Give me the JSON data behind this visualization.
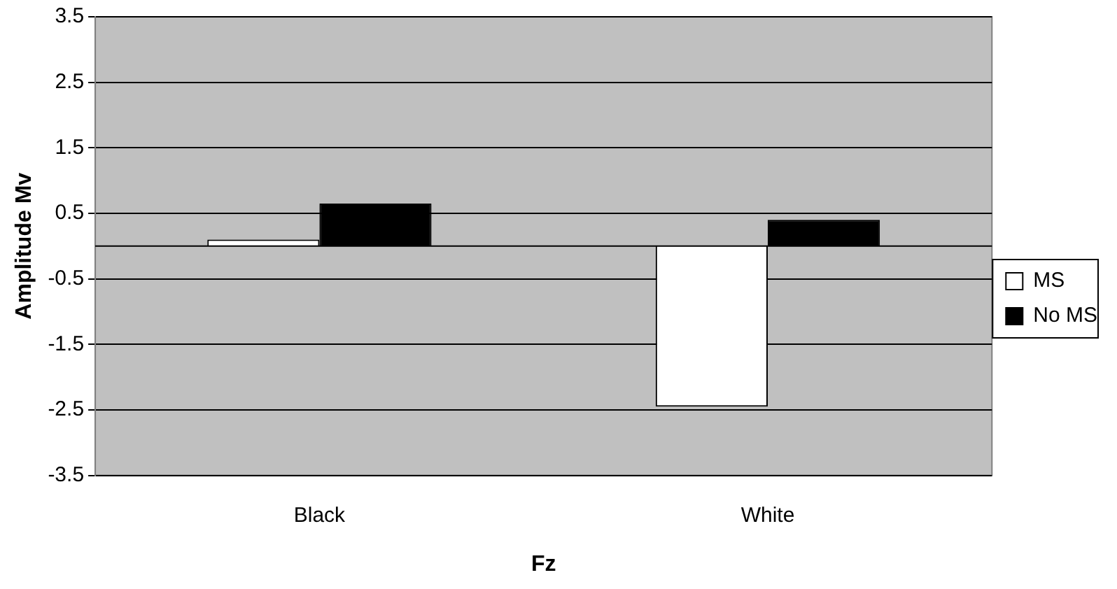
{
  "chart_data": {
    "type": "bar",
    "xlabel": "Fz",
    "ylabel": "Amplitude Mv",
    "categories": [
      "Black",
      "White"
    ],
    "series": [
      {
        "name": "MS",
        "color": "#ffffff",
        "values": [
          0.1,
          -2.45
        ]
      },
      {
        "name": "No MS",
        "color": "#000000",
        "values": [
          0.65,
          0.4
        ]
      }
    ],
    "ylim": [
      -3.5,
      3.5
    ],
    "yticks": [
      -3.5,
      -2.5,
      -1.5,
      -0.5,
      0.5,
      1.5,
      2.5,
      3.5
    ],
    "grid": "y",
    "legend": "right"
  }
}
